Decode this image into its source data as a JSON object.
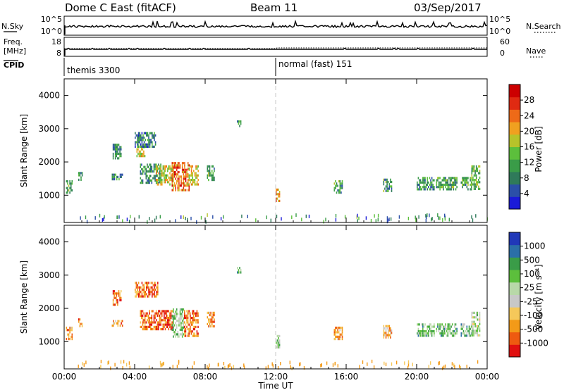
{
  "header": {
    "title": "Dome C East (fitACF)",
    "beam": "Beam 11",
    "date": "03/Sep/2017"
  },
  "status_panel": {
    "nsky_label": "N.Sky",
    "nsky_ticks": [
      "10^5",
      "10^0"
    ],
    "nsearch_label": "N.Search",
    "nsearch_ticks": [
      "10^5",
      "10^0"
    ],
    "freq_label_line1": "Freq.",
    "freq_label_line2": "[MHz]",
    "freq_ticks": [
      "18",
      "8"
    ],
    "nave_label": "Nave",
    "nave_ticks": [
      "60",
      "0"
    ],
    "cpid_label": "CPID",
    "cpid_segments": [
      {
        "start_hour": 0.0,
        "name": "themis 3300"
      },
      {
        "start_hour": 12.0,
        "name": "normal (fast) 151"
      }
    ]
  },
  "x_axis": {
    "label": "Time UT",
    "ticks": [
      "00:00",
      "04:00",
      "08:00",
      "12:00",
      "16:00",
      "20:00",
      "00:00"
    ],
    "tick_hours": [
      0,
      4,
      8,
      12,
      16,
      20,
      24
    ],
    "range_hours": [
      0,
      24
    ]
  },
  "colors": {
    "power_scale": [
      "#1a1ad8",
      "#2b4fa8",
      "#2f7a5a",
      "#3a9c48",
      "#5cbf3c",
      "#b7c32a",
      "#f0a020",
      "#ee6a18",
      "#e02a12",
      "#cc0000"
    ],
    "velocity_scale": [
      "#e01010",
      "#ee5a10",
      "#f39a18",
      "#f5c85a",
      "#c8c8c8",
      "#b8d8a8",
      "#5cbf3c",
      "#3a9c48",
      "#2b6fa8",
      "#2038b8"
    ],
    "axis": "#000000",
    "boundary_line": "#c8c8c8"
  },
  "chart_data": [
    {
      "type": "heatmap",
      "name": "power",
      "ylabel": "Slant Range [km]",
      "ylim": [
        180,
        4500
      ],
      "yticks": [
        1000,
        2000,
        3000,
        4000
      ],
      "xlim": [
        0,
        24
      ],
      "colorbar": {
        "label": "Power [dB]",
        "range": [
          0,
          32
        ],
        "ticks": [
          "4",
          "8",
          "12",
          "16",
          "20",
          "24",
          "28"
        ],
        "tick_values": [
          4,
          8,
          12,
          16,
          20,
          24,
          28
        ]
      },
      "regions": [
        {
          "t0": 0.1,
          "t1": 0.45,
          "r0": 1100,
          "r1": 1450,
          "level": 0.35
        },
        {
          "t0": 0.8,
          "t1": 1.0,
          "r0": 1450,
          "r1": 1700,
          "level": 0.25
        },
        {
          "t0": 2.7,
          "t1": 3.3,
          "r0": 1450,
          "r1": 1650,
          "level": 0.3
        },
        {
          "t0": 2.75,
          "t1": 3.2,
          "r0": 2100,
          "r1": 2550,
          "level": 0.3
        },
        {
          "t0": 4.1,
          "t1": 4.6,
          "r0": 2150,
          "r1": 2550,
          "level": 0.55
        },
        {
          "t0": 4.3,
          "t1": 5.5,
          "r0": 1400,
          "r1": 1950,
          "level": 0.3
        },
        {
          "t0": 5.2,
          "t1": 6.2,
          "r0": 1350,
          "r1": 1900,
          "level": 0.55
        },
        {
          "t0": 6.1,
          "t1": 7.1,
          "r0": 1150,
          "r1": 2000,
          "level": 0.75
        },
        {
          "t0": 7.0,
          "t1": 7.6,
          "r0": 1300,
          "r1": 1900,
          "level": 0.6
        },
        {
          "t0": 8.1,
          "t1": 8.5,
          "r0": 1450,
          "r1": 1900,
          "level": 0.35
        },
        {
          "t0": 4.0,
          "t1": 5.2,
          "r0": 2450,
          "r1": 2900,
          "level": 0.25
        },
        {
          "t0": 9.8,
          "t1": 10.0,
          "r0": 3050,
          "r1": 3250,
          "level": 0.3
        },
        {
          "t0": 12.0,
          "t1": 12.25,
          "r0": 850,
          "r1": 1200,
          "level": 0.7
        },
        {
          "t0": 15.3,
          "t1": 15.8,
          "r0": 1050,
          "r1": 1450,
          "level": 0.35
        },
        {
          "t0": 18.1,
          "t1": 18.6,
          "r0": 1150,
          "r1": 1500,
          "level": 0.35
        },
        {
          "t0": 20.0,
          "t1": 21.0,
          "r0": 1200,
          "r1": 1550,
          "level": 0.3
        },
        {
          "t0": 21.1,
          "t1": 22.3,
          "r0": 1150,
          "r1": 1550,
          "level": 0.35
        },
        {
          "t0": 22.5,
          "t1": 23.1,
          "r0": 1150,
          "r1": 1550,
          "level": 0.35
        },
        {
          "t0": 23.1,
          "t1": 23.6,
          "r0": 1200,
          "r1": 1900,
          "level": 0.4
        }
      ]
    },
    {
      "type": "heatmap",
      "name": "velocity",
      "ylabel": "Slant Range [km]",
      "ylim": [
        180,
        4500
      ],
      "yticks": [
        1000,
        2000,
        3000,
        4000
      ],
      "xlim": [
        0,
        24
      ],
      "colorbar": {
        "label": "Velocity [m s⁻¹]",
        "range": [
          -1500,
          1500
        ],
        "ticks": [
          "1000",
          "500",
          "100",
          "25",
          "-25",
          "-100",
          "-500",
          "-1000"
        ]
      },
      "regions": [
        {
          "t0": 0.1,
          "t1": 0.45,
          "r0": 1100,
          "r1": 1450,
          "level": 0.25
        },
        {
          "t0": 0.8,
          "t1": 1.0,
          "r0": 1450,
          "r1": 1700,
          "level": 0.25
        },
        {
          "t0": 2.7,
          "t1": 3.3,
          "r0": 1450,
          "r1": 1650,
          "level": 0.25
        },
        {
          "t0": 2.75,
          "t1": 3.2,
          "r0": 2100,
          "r1": 2550,
          "level": 0.2
        },
        {
          "t0": 4.0,
          "t1": 5.3,
          "r0": 2350,
          "r1": 2800,
          "level": 0.2
        },
        {
          "t0": 4.3,
          "t1": 6.2,
          "r0": 1350,
          "r1": 1950,
          "level": 0.15
        },
        {
          "t0": 6.1,
          "t1": 6.8,
          "r0": 1150,
          "r1": 2000,
          "level": 0.6
        },
        {
          "t0": 6.8,
          "t1": 7.6,
          "r0": 1150,
          "r1": 1950,
          "level": 0.2
        },
        {
          "t0": 8.1,
          "t1": 8.5,
          "r0": 1450,
          "r1": 1900,
          "level": 0.25
        },
        {
          "t0": 9.8,
          "t1": 10.0,
          "r0": 3050,
          "r1": 3250,
          "level": 0.7
        },
        {
          "t0": 12.0,
          "t1": 12.25,
          "r0": 850,
          "r1": 1200,
          "level": 0.6
        },
        {
          "t0": 15.3,
          "t1": 15.8,
          "r0": 1050,
          "r1": 1450,
          "level": 0.3
        },
        {
          "t0": 18.1,
          "t1": 18.6,
          "r0": 1150,
          "r1": 1500,
          "level": 0.3
        },
        {
          "t0": 20.0,
          "t1": 21.0,
          "r0": 1200,
          "r1": 1550,
          "level": 0.65
        },
        {
          "t0": 21.1,
          "t1": 22.3,
          "r0": 1150,
          "r1": 1550,
          "level": 0.65
        },
        {
          "t0": 22.5,
          "t1": 23.1,
          "r0": 1150,
          "r1": 1550,
          "level": 0.65
        },
        {
          "t0": 23.1,
          "t1": 23.6,
          "r0": 1200,
          "r1": 1900,
          "level": 0.55
        }
      ]
    }
  ]
}
